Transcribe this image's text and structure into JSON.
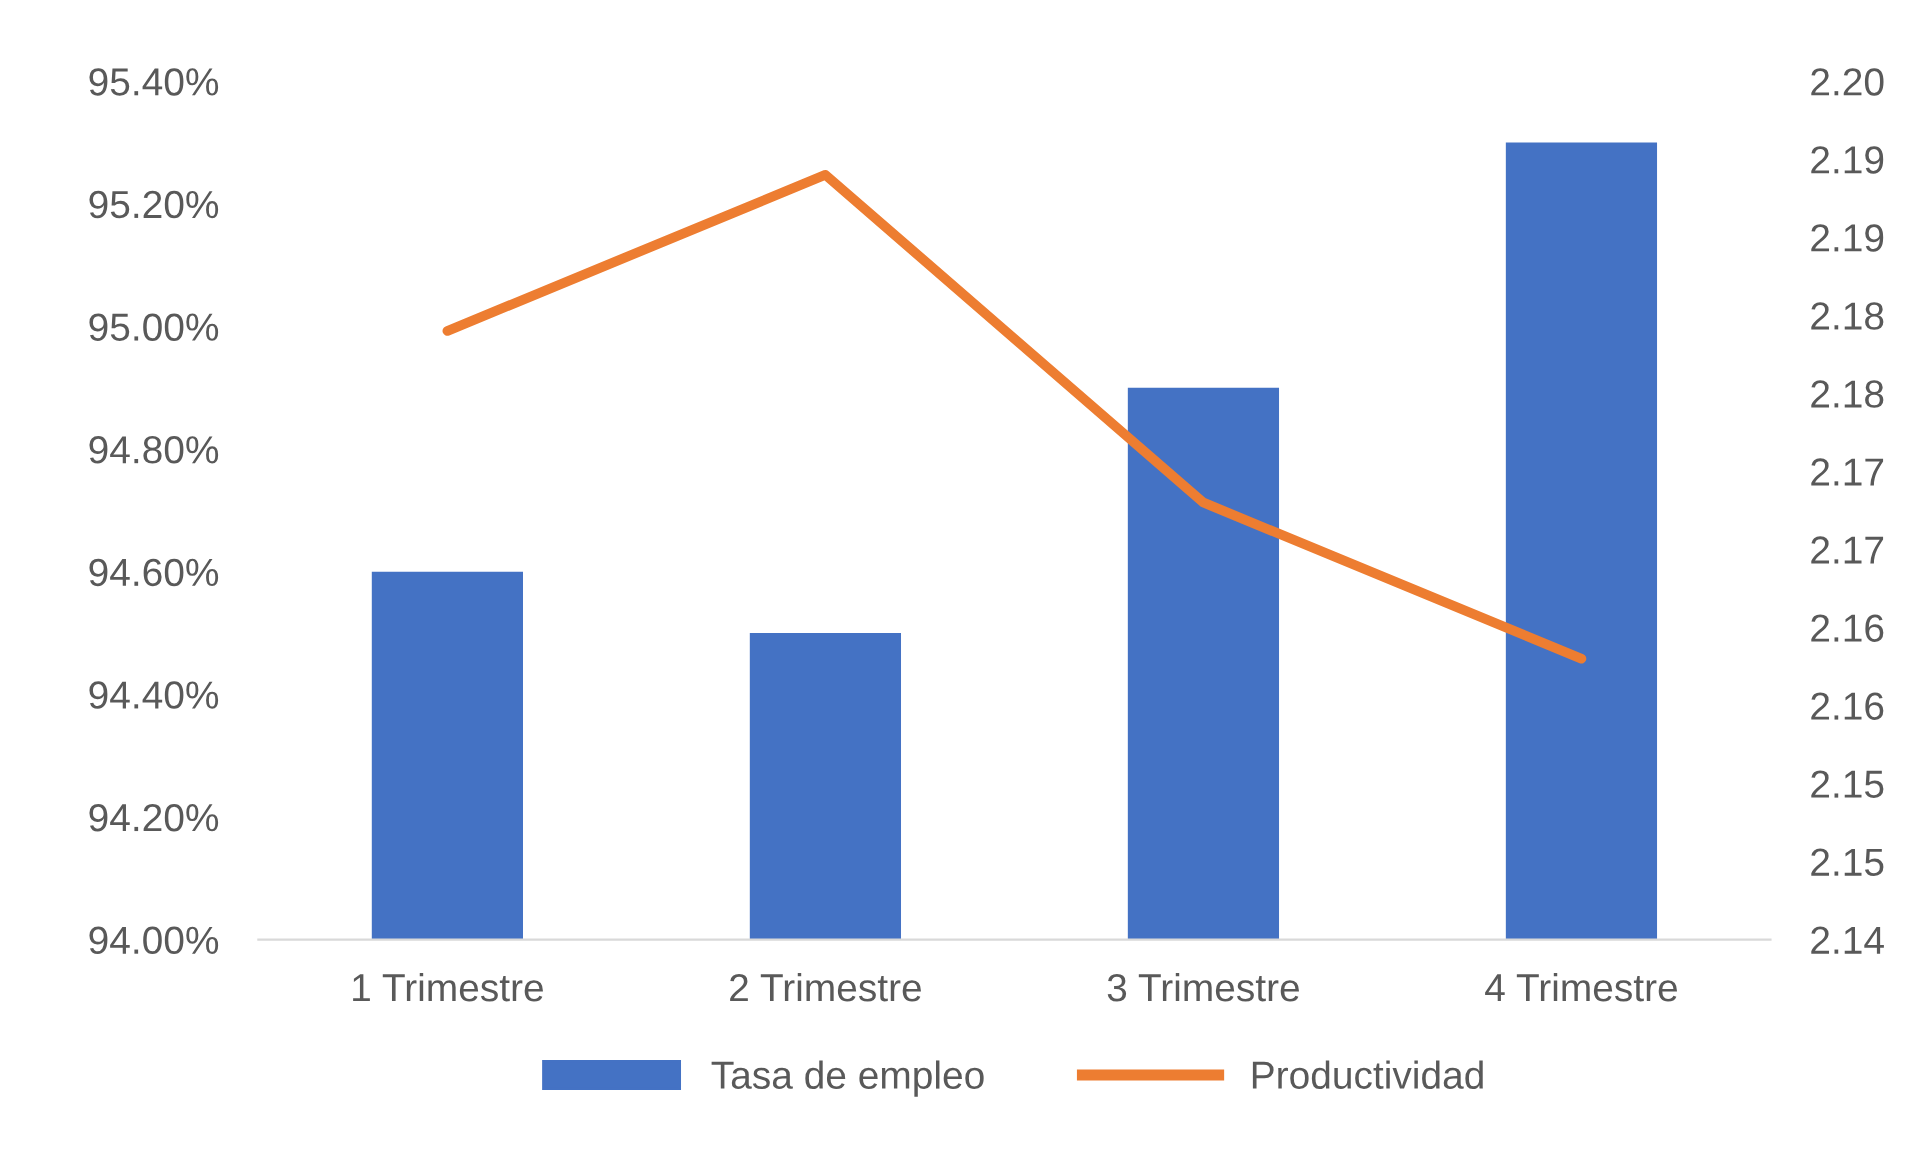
{
  "chart_data": {
    "type": "bar",
    "categories": [
      "1 Trimestre",
      "2 Trimestre",
      "3 Trimestre",
      "4 Trimestre"
    ],
    "series": [
      {
        "name": "Tasa de empleo",
        "color": "#4472c4",
        "values": [
          94.6,
          94.5,
          94.9,
          95.3
        ]
      },
      {
        "name": "Productividad",
        "color": "#ed7d31",
        "type": "line",
        "axis": "y2",
        "values": [
          2.179,
          2.189,
          2.168,
          2.158
        ]
      }
    ],
    "ylim": [
      94.0,
      95.4
    ],
    "yticks": [
      {
        "value": 94.0,
        "label": "94.00%"
      },
      {
        "value": 94.2,
        "label": "94.20%"
      },
      {
        "value": 94.4,
        "label": "94.40%"
      },
      {
        "value": 94.6,
        "label": "94.60%"
      },
      {
        "value": 94.8,
        "label": "94.80%"
      },
      {
        "value": 95.0,
        "label": "95.00%"
      },
      {
        "value": 95.2,
        "label": "95.20%"
      },
      {
        "value": 95.4,
        "label": "95.40%"
      }
    ],
    "y2lim": [
      2.14,
      2.195
    ],
    "y2ticks": [
      2.14,
      {
        "value": 2.145,
        "label": "2.15"
      },
      2.15,
      {
        "value": 2.155,
        "label": "2.16"
      },
      2.16,
      {
        "value": 2.165,
        "label": "2.17"
      },
      2.17,
      {
        "value": 2.175,
        "label": "2.18"
      },
      2.18,
      {
        "value": 2.185,
        "label": "2.19"
      },
      2.19,
      {
        "value": 2.195,
        "label": "2.20"
      }
    ],
    "grid": false,
    "legend": "bottom",
    "marker": "none",
    "line_style": "solid"
  }
}
